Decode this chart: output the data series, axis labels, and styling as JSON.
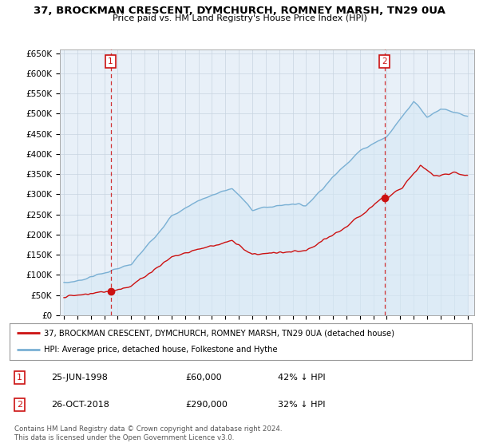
{
  "title": "37, BROCKMAN CRESCENT, DYMCHURCH, ROMNEY MARSH, TN29 0UA",
  "subtitle": "Price paid vs. HM Land Registry's House Price Index (HPI)",
  "ylim": [
    0,
    660000
  ],
  "yticks": [
    0,
    50000,
    100000,
    150000,
    200000,
    250000,
    300000,
    350000,
    400000,
    450000,
    500000,
    550000,
    600000,
    650000
  ],
  "ytick_labels": [
    "£0",
    "£50K",
    "£100K",
    "£150K",
    "£200K",
    "£250K",
    "£300K",
    "£350K",
    "£400K",
    "£450K",
    "£500K",
    "£550K",
    "£600K",
    "£650K"
  ],
  "hpi_color": "#7ab0d4",
  "hpi_fill": "#d6e8f5",
  "price_color": "#cc1111",
  "vline_color": "#cc1111",
  "annotation1_date": 1998.47,
  "annotation1_price": 60000,
  "annotation2_date": 2018.83,
  "annotation2_price": 290000,
  "legend_line1": "37, BROCKMAN CRESCENT, DYMCHURCH, ROMNEY MARSH, TN29 0UA (detached house)",
  "legend_line2": "HPI: Average price, detached house, Folkestone and Hythe",
  "table_row1": [
    "1",
    "25-JUN-1998",
    "£60,000",
    "42% ↓ HPI"
  ],
  "table_row2": [
    "2",
    "26-OCT-2018",
    "£290,000",
    "32% ↓ HPI"
  ],
  "footer": "Contains HM Land Registry data © Crown copyright and database right 2024.\nThis data is licensed under the Open Government Licence v3.0.",
  "background_color": "#ffffff",
  "chart_bg": "#e8f0f8",
  "grid_color": "#c8d4e0"
}
